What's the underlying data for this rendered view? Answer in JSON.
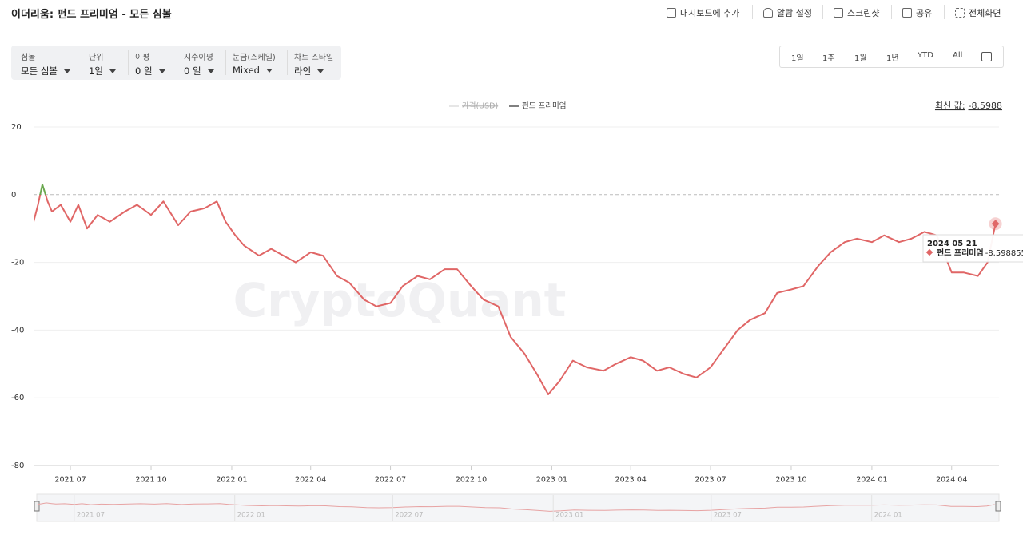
{
  "header": {
    "title": "이더리움: 펀드 프리미엄 - 모든 심볼",
    "actions": [
      "대시보드에 추가",
      "알람 설정",
      "스크린샷",
      "공유",
      "전체화면"
    ]
  },
  "filters": [
    {
      "label": "심볼",
      "value": "모든 심볼"
    },
    {
      "label": "단위",
      "value": "1일"
    },
    {
      "label": "이평",
      "value": "0 일"
    },
    {
      "label": "지수이평",
      "value": "0 일"
    },
    {
      "label": "눈금(스케일)",
      "value": "Mixed"
    },
    {
      "label": "차트 스타일",
      "value": "라인"
    }
  ],
  "ranges": [
    "1일",
    "1주",
    "1월",
    "1년",
    "YTD",
    "All"
  ],
  "chart_data": {
    "type": "line",
    "watermark": "CryptoQuant",
    "legend": [
      {
        "name": "가격(USD)",
        "hidden": true
      }
    ],
    "latest": {
      "label": "최신 값:",
      "value": -8.5988
    },
    "tooltip": {
      "date": "2024 05 21",
      "name": "펀드 프리미엄",
      "value": -8.598855
    },
    "x": [
      "2021-05-20",
      "2021-05-25",
      "2021-05-30",
      "2021-06-05",
      "2021-06-10",
      "2021-06-20",
      "2021-07-01",
      "2021-07-10",
      "2021-07-20",
      "2021-08-01",
      "2021-08-15",
      "2021-09-01",
      "2021-09-15",
      "2021-10-01",
      "2021-10-15",
      "2021-11-01",
      "2021-11-15",
      "2021-12-01",
      "2021-12-15",
      "2021-12-25",
      "2022-01-05",
      "2022-01-15",
      "2022-02-01",
      "2022-02-15",
      "2022-03-01",
      "2022-03-15",
      "2022-04-01",
      "2022-04-15",
      "2022-05-01",
      "2022-05-15",
      "2022-06-01",
      "2022-06-15",
      "2022-07-01",
      "2022-07-15",
      "2022-08-01",
      "2022-08-15",
      "2022-09-01",
      "2022-09-15",
      "2022-10-01",
      "2022-10-15",
      "2022-11-01",
      "2022-11-15",
      "2022-12-01",
      "2022-12-15",
      "2022-12-28",
      "2023-01-10",
      "2023-01-25",
      "2023-02-10",
      "2023-03-01",
      "2023-03-15",
      "2023-04-01",
      "2023-04-15",
      "2023-05-01",
      "2023-05-15",
      "2023-06-01",
      "2023-06-15",
      "2023-07-01",
      "2023-07-15",
      "2023-08-01",
      "2023-08-15",
      "2023-09-01",
      "2023-09-15",
      "2023-10-01",
      "2023-10-15",
      "2023-11-01",
      "2023-11-15",
      "2023-12-01",
      "2023-12-15",
      "2024-01-01",
      "2024-01-15",
      "2024-02-01",
      "2024-02-15",
      "2024-03-01",
      "2024-03-15",
      "2024-04-01",
      "2024-04-15",
      "2024-05-01",
      "2024-05-12",
      "2024-05-21"
    ],
    "series": [
      {
        "name": "펀드 프리미엄",
        "color": "#e06666",
        "color_positive": "#6aa84f",
        "values": [
          -8,
          -3,
          3,
          -2,
          -5,
          -3,
          -8,
          -3,
          -10,
          -6,
          -8,
          -5,
          -3,
          -6,
          -2,
          -9,
          -5,
          -4,
          -2,
          -8,
          -12,
          -15,
          -18,
          -16,
          -18,
          -20,
          -17,
          -18,
          -24,
          -26,
          -31,
          -33,
          -32,
          -27,
          -24,
          -25,
          -22,
          -22,
          -27,
          -31,
          -33,
          -42,
          -47,
          -53,
          -59,
          -55,
          -49,
          -51,
          -52,
          -50,
          -48,
          -49,
          -52,
          -51,
          -53,
          -54,
          -51,
          -46,
          -40,
          -37,
          -35,
          -29,
          -28,
          -27,
          -21,
          -17,
          -14,
          -13,
          -14,
          -12,
          -14,
          -13,
          -11,
          -12,
          -23,
          -23,
          -24,
          -20,
          -8.598855
        ]
      }
    ],
    "xlim": [
      "2021-05-20",
      "2024-05-25"
    ],
    "xticks": [
      {
        "value": "2021-07-01",
        "label": "2021 07"
      },
      {
        "value": "2021-10-01",
        "label": "2021 10"
      },
      {
        "value": "2022-01-01",
        "label": "2022 01"
      },
      {
        "value": "2022-04-01",
        "label": "2022 04"
      },
      {
        "value": "2022-07-01",
        "label": "2022 07"
      },
      {
        "value": "2022-10-01",
        "label": "2022 10"
      },
      {
        "value": "2023-01-01",
        "label": "2023 01"
      },
      {
        "value": "2023-04-01",
        "label": "2023 04"
      },
      {
        "value": "2023-07-01",
        "label": "2023 07"
      },
      {
        "value": "2023-10-01",
        "label": "2023 10"
      },
      {
        "value": "2024-01-01",
        "label": "2024 01"
      },
      {
        "value": "2024-04-01",
        "label": "2024 04"
      }
    ],
    "ylim": [
      -80,
      20
    ],
    "yticks": [
      20,
      0,
      -20,
      -40,
      -60,
      -80
    ],
    "grid": true
  }
}
